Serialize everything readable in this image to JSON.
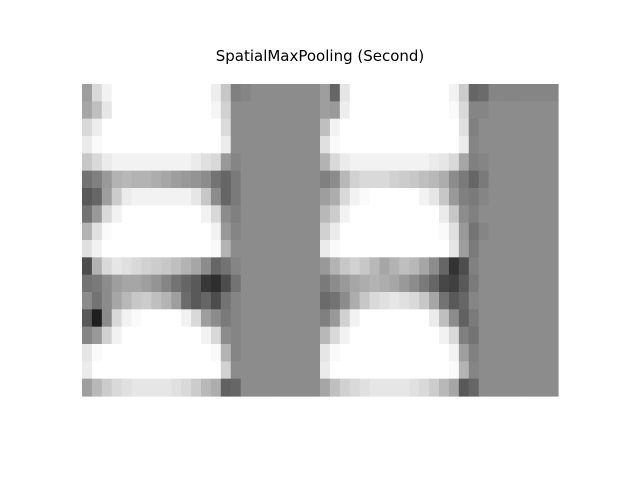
{
  "chart_data": {
    "type": "heatmap",
    "title": "SpatialMaxPooling (Second)",
    "xlabel": "",
    "ylabel": "",
    "colormap": "gray",
    "axes_visible": false,
    "grid": false,
    "legend": "none",
    "value_range": [
      0,
      1
    ],
    "values": [
      [
        0.62,
        0.85,
        0.95,
        1.0,
        1.0,
        1.0,
        1.0,
        1.0,
        1.0,
        1.0,
        1.0,
        1.0,
        1.0,
        0.93,
        0.78,
        0.5,
        0.52,
        0.55,
        0.55,
        0.55,
        0.55,
        0.55,
        0.55,
        0.55,
        0.62,
        0.4,
        0.9,
        1.0,
        1.0,
        1.0,
        1.0,
        1.0,
        1.0,
        1.0,
        1.0,
        1.0,
        1.0,
        0.95,
        0.8,
        0.4,
        0.42,
        0.52,
        0.52,
        0.52,
        0.52,
        0.52,
        0.52,
        0.52
      ],
      [
        0.65,
        0.75,
        0.9,
        1.0,
        1.0,
        1.0,
        1.0,
        1.0,
        1.0,
        1.0,
        1.0,
        1.0,
        1.0,
        0.96,
        0.82,
        0.55,
        0.55,
        0.55,
        0.55,
        0.55,
        0.55,
        0.55,
        0.55,
        0.55,
        0.62,
        0.6,
        0.93,
        1.0,
        1.0,
        1.0,
        1.0,
        1.0,
        1.0,
        1.0,
        1.0,
        1.0,
        1.0,
        0.98,
        0.85,
        0.52,
        0.52,
        0.55,
        0.55,
        0.55,
        0.55,
        0.55,
        0.55,
        0.55
      ],
      [
        0.85,
        0.93,
        1.0,
        1.0,
        1.0,
        1.0,
        1.0,
        1.0,
        1.0,
        1.0,
        1.0,
        1.0,
        1.0,
        1.0,
        0.86,
        0.55,
        0.55,
        0.55,
        0.55,
        0.55,
        0.55,
        0.55,
        0.55,
        0.55,
        0.75,
        0.95,
        1.0,
        1.0,
        1.0,
        1.0,
        1.0,
        1.0,
        1.0,
        1.0,
        1.0,
        1.0,
        1.0,
        1.0,
        0.88,
        0.5,
        0.55,
        0.55,
        0.55,
        0.55,
        0.55,
        0.55,
        0.55,
        0.55
      ],
      [
        0.92,
        0.98,
        1.0,
        1.0,
        1.0,
        1.0,
        1.0,
        1.0,
        1.0,
        1.0,
        1.0,
        1.0,
        1.0,
        1.0,
        0.92,
        0.55,
        0.55,
        0.55,
        0.55,
        0.55,
        0.55,
        0.55,
        0.55,
        0.55,
        0.88,
        0.98,
        1.0,
        1.0,
        1.0,
        1.0,
        1.0,
        1.0,
        1.0,
        1.0,
        1.0,
        1.0,
        1.0,
        1.0,
        0.92,
        0.52,
        0.55,
        0.55,
        0.55,
        0.55,
        0.55,
        0.55,
        0.55,
        0.55
      ],
      [
        0.78,
        0.85,
        0.92,
        0.95,
        0.95,
        0.95,
        0.95,
        0.95,
        0.95,
        0.95,
        0.95,
        0.92,
        0.88,
        0.85,
        0.6,
        0.52,
        0.55,
        0.55,
        0.55,
        0.55,
        0.55,
        0.55,
        0.55,
        0.55,
        0.7,
        0.85,
        0.92,
        0.95,
        0.95,
        0.95,
        0.95,
        0.95,
        0.95,
        0.95,
        0.95,
        0.92,
        0.9,
        0.85,
        0.65,
        0.5,
        0.52,
        0.55,
        0.55,
        0.55,
        0.55,
        0.55,
        0.55,
        0.55
      ],
      [
        0.45,
        0.5,
        0.6,
        0.7,
        0.72,
        0.7,
        0.7,
        0.68,
        0.65,
        0.62,
        0.6,
        0.58,
        0.55,
        0.45,
        0.4,
        0.48,
        0.55,
        0.55,
        0.55,
        0.55,
        0.55,
        0.55,
        0.55,
        0.55,
        0.5,
        0.55,
        0.72,
        0.82,
        0.85,
        0.85,
        0.85,
        0.82,
        0.8,
        0.78,
        0.75,
        0.72,
        0.68,
        0.55,
        0.48,
        0.4,
        0.48,
        0.55,
        0.55,
        0.55,
        0.55,
        0.55,
        0.55,
        0.55
      ],
      [
        0.35,
        0.4,
        0.62,
        0.8,
        0.92,
        0.95,
        0.95,
        0.95,
        0.95,
        0.95,
        0.95,
        0.9,
        0.78,
        0.55,
        0.4,
        0.48,
        0.55,
        0.55,
        0.55,
        0.55,
        0.55,
        0.55,
        0.55,
        0.55,
        0.62,
        0.68,
        0.85,
        0.95,
        0.98,
        1.0,
        1.0,
        1.0,
        1.0,
        1.0,
        0.95,
        0.9,
        0.78,
        0.6,
        0.5,
        0.48,
        0.52,
        0.55,
        0.55,
        0.55,
        0.55,
        0.55,
        0.55,
        0.55
      ],
      [
        0.45,
        0.6,
        0.85,
        0.95,
        1.0,
        1.0,
        1.0,
        1.0,
        1.0,
        1.0,
        1.0,
        1.0,
        0.95,
        0.85,
        0.55,
        0.5,
        0.55,
        0.55,
        0.55,
        0.55,
        0.55,
        0.55,
        0.55,
        0.55,
        0.72,
        0.8,
        0.95,
        1.0,
        1.0,
        1.0,
        1.0,
        1.0,
        1.0,
        1.0,
        1.0,
        1.0,
        0.92,
        0.78,
        0.55,
        0.5,
        0.55,
        0.55,
        0.55,
        0.55,
        0.55,
        0.55,
        0.55,
        0.55
      ],
      [
        0.7,
        0.88,
        0.98,
        1.0,
        1.0,
        1.0,
        1.0,
        1.0,
        1.0,
        1.0,
        1.0,
        1.0,
        1.0,
        0.95,
        0.6,
        0.52,
        0.55,
        0.55,
        0.55,
        0.55,
        0.55,
        0.55,
        0.55,
        0.55,
        0.82,
        0.92,
        1.0,
        1.0,
        1.0,
        1.0,
        1.0,
        1.0,
        1.0,
        1.0,
        1.0,
        1.0,
        0.98,
        0.88,
        0.6,
        0.45,
        0.52,
        0.55,
        0.55,
        0.55,
        0.55,
        0.55,
        0.55,
        0.55
      ],
      [
        0.88,
        0.95,
        1.0,
        1.0,
        1.0,
        1.0,
        1.0,
        1.0,
        1.0,
        1.0,
        1.0,
        1.0,
        1.0,
        0.98,
        0.7,
        0.55,
        0.55,
        0.55,
        0.55,
        0.55,
        0.55,
        0.55,
        0.55,
        0.55,
        0.92,
        0.98,
        1.0,
        1.0,
        1.0,
        1.0,
        1.0,
        1.0,
        1.0,
        1.0,
        1.0,
        1.0,
        1.0,
        0.9,
        0.62,
        0.48,
        0.55,
        0.55,
        0.55,
        0.55,
        0.55,
        0.55,
        0.55,
        0.55
      ],
      [
        0.3,
        0.7,
        0.85,
        0.9,
        0.88,
        0.85,
        0.82,
        0.8,
        0.78,
        0.75,
        0.7,
        0.65,
        0.55,
        0.4,
        0.45,
        0.52,
        0.55,
        0.55,
        0.55,
        0.55,
        0.55,
        0.55,
        0.55,
        0.55,
        0.6,
        0.7,
        0.78,
        0.82,
        0.78,
        0.72,
        0.65,
        0.7,
        0.75,
        0.72,
        0.65,
        0.55,
        0.4,
        0.2,
        0.3,
        0.5,
        0.55,
        0.55,
        0.55,
        0.55,
        0.55,
        0.55,
        0.55,
        0.55
      ],
      [
        0.45,
        0.48,
        0.55,
        0.62,
        0.65,
        0.65,
        0.62,
        0.58,
        0.52,
        0.45,
        0.4,
        0.35,
        0.22,
        0.18,
        0.3,
        0.45,
        0.55,
        0.55,
        0.55,
        0.55,
        0.55,
        0.55,
        0.55,
        0.55,
        0.48,
        0.55,
        0.6,
        0.65,
        0.68,
        0.7,
        0.68,
        0.65,
        0.6,
        0.55,
        0.48,
        0.4,
        0.28,
        0.25,
        0.35,
        0.48,
        0.55,
        0.55,
        0.55,
        0.55,
        0.55,
        0.55,
        0.55,
        0.55
      ],
      [
        0.55,
        0.45,
        0.55,
        0.65,
        0.72,
        0.78,
        0.8,
        0.75,
        0.7,
        0.62,
        0.42,
        0.35,
        0.4,
        0.3,
        0.45,
        0.52,
        0.55,
        0.55,
        0.55,
        0.55,
        0.55,
        0.55,
        0.55,
        0.55,
        0.42,
        0.45,
        0.55,
        0.68,
        0.78,
        0.85,
        0.88,
        0.9,
        0.88,
        0.85,
        0.78,
        0.65,
        0.45,
        0.35,
        0.4,
        0.52,
        0.55,
        0.55,
        0.55,
        0.55,
        0.55,
        0.55,
        0.55,
        0.55
      ],
      [
        0.35,
        0.12,
        0.55,
        0.85,
        0.95,
        0.98,
        1.0,
        1.0,
        1.0,
        1.0,
        0.95,
        0.85,
        0.62,
        0.55,
        0.48,
        0.52,
        0.55,
        0.55,
        0.55,
        0.55,
        0.55,
        0.55,
        0.55,
        0.55,
        0.5,
        0.6,
        0.82,
        0.95,
        1.0,
        1.0,
        1.0,
        1.0,
        1.0,
        1.0,
        1.0,
        0.92,
        0.75,
        0.55,
        0.38,
        0.48,
        0.55,
        0.55,
        0.55,
        0.55,
        0.55,
        0.55,
        0.55,
        0.55
      ],
      [
        0.52,
        0.6,
        0.82,
        0.95,
        1.0,
        1.0,
        1.0,
        1.0,
        1.0,
        1.0,
        1.0,
        1.0,
        0.95,
        0.85,
        0.55,
        0.52,
        0.55,
        0.55,
        0.55,
        0.55,
        0.55,
        0.55,
        0.55,
        0.55,
        0.72,
        0.85,
        0.95,
        1.0,
        1.0,
        1.0,
        1.0,
        1.0,
        1.0,
        1.0,
        1.0,
        1.0,
        0.95,
        0.85,
        0.5,
        0.45,
        0.55,
        0.55,
        0.55,
        0.55,
        0.55,
        0.55,
        0.55,
        0.55
      ],
      [
        0.9,
        0.98,
        1.0,
        1.0,
        1.0,
        1.0,
        1.0,
        1.0,
        1.0,
        1.0,
        1.0,
        1.0,
        1.0,
        0.98,
        0.7,
        0.52,
        0.55,
        0.55,
        0.55,
        0.55,
        0.55,
        0.55,
        0.55,
        0.55,
        0.9,
        0.98,
        1.0,
        1.0,
        1.0,
        1.0,
        1.0,
        1.0,
        1.0,
        1.0,
        1.0,
        1.0,
        1.0,
        0.95,
        0.62,
        0.5,
        0.55,
        0.55,
        0.55,
        0.55,
        0.55,
        0.55,
        0.55,
        0.55
      ],
      [
        0.92,
        1.0,
        1.0,
        1.0,
        1.0,
        1.0,
        1.0,
        1.0,
        1.0,
        1.0,
        1.0,
        1.0,
        1.0,
        1.0,
        0.82,
        0.55,
        0.55,
        0.55,
        0.55,
        0.55,
        0.55,
        0.55,
        0.55,
        0.55,
        0.92,
        1.0,
        1.0,
        1.0,
        1.0,
        1.0,
        1.0,
        1.0,
        1.0,
        1.0,
        1.0,
        1.0,
        1.0,
        0.98,
        0.7,
        0.52,
        0.55,
        0.55,
        0.55,
        0.55,
        0.55,
        0.55,
        0.55,
        0.55
      ],
      [
        0.62,
        0.72,
        0.8,
        0.85,
        0.88,
        0.9,
        0.9,
        0.9,
        0.9,
        0.88,
        0.85,
        0.8,
        0.72,
        0.68,
        0.38,
        0.4,
        0.55,
        0.55,
        0.55,
        0.55,
        0.55,
        0.55,
        0.55,
        0.55,
        0.65,
        0.75,
        0.82,
        0.85,
        0.88,
        0.9,
        0.9,
        0.9,
        0.9,
        0.88,
        0.85,
        0.8,
        0.72,
        0.65,
        0.35,
        0.4,
        0.55,
        0.55,
        0.55,
        0.55,
        0.55,
        0.55,
        0.55,
        0.55
      ]
    ]
  }
}
